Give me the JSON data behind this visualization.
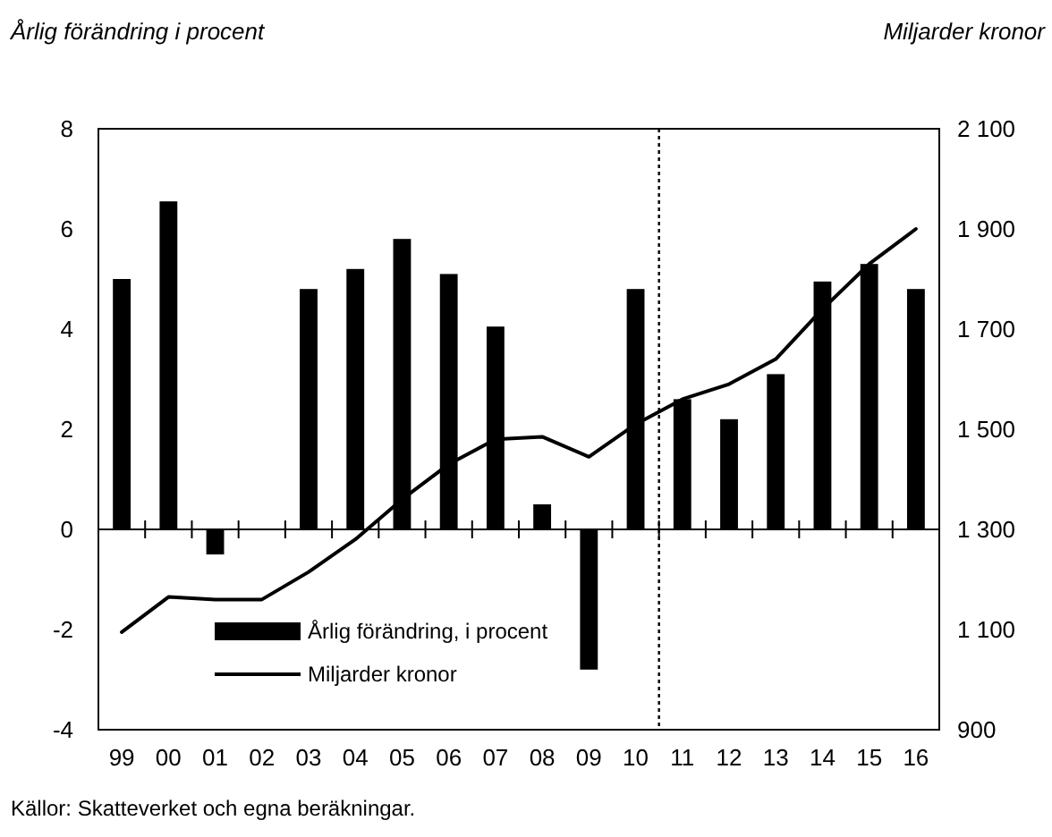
{
  "chart_data": {
    "type": "bar",
    "ylabel": "Årlig förändring i procent",
    "y2label": "Miljarder kronor",
    "x": [
      1999,
      2000,
      2001,
      2002,
      2003,
      2004,
      2005,
      2006,
      2007,
      2008,
      2009,
      2010,
      2011,
      2012,
      2013,
      2014,
      2015,
      2016
    ],
    "xlim": [
      1998.5,
      2016.5
    ],
    "xticks": [
      {
        "value": 1999,
        "label": "99"
      },
      {
        "value": 2000,
        "label": "00"
      },
      {
        "value": 2001,
        "label": "01"
      },
      {
        "value": 2002,
        "label": "02"
      },
      {
        "value": 2003,
        "label": "03"
      },
      {
        "value": 2004,
        "label": "04"
      },
      {
        "value": 2005,
        "label": "05"
      },
      {
        "value": 2006,
        "label": "06"
      },
      {
        "value": 2007,
        "label": "07"
      },
      {
        "value": 2008,
        "label": "08"
      },
      {
        "value": 2009,
        "label": "09"
      },
      {
        "value": 2010,
        "label": "10"
      },
      {
        "value": 2011,
        "label": "11"
      },
      {
        "value": 2012,
        "label": "12"
      },
      {
        "value": 2013,
        "label": "13"
      },
      {
        "value": 2014,
        "label": "14"
      },
      {
        "value": 2015,
        "label": "15"
      },
      {
        "value": 2016,
        "label": "16"
      },
      {
        "value": 1999.5,
        "label": null
      },
      {
        "value": 2000.5,
        "label": null
      },
      {
        "value": 2001.5,
        "label": null
      },
      {
        "value": 2002.5,
        "label": null
      },
      {
        "value": 2003.5,
        "label": null
      },
      {
        "value": 2004.5,
        "label": null
      },
      {
        "value": 2005.5,
        "label": null
      },
      {
        "value": 2006.5,
        "label": null
      },
      {
        "value": 2007.5,
        "label": null
      },
      {
        "value": 2008.5,
        "label": null
      },
      {
        "value": 2009.5,
        "label": null
      },
      {
        "value": 2010.5,
        "label": null
      },
      {
        "value": 2011.5,
        "label": null
      },
      {
        "value": 2012.5,
        "label": null
      },
      {
        "value": 2013.5,
        "label": null
      },
      {
        "value": 2014.5,
        "label": null
      },
      {
        "value": 2015.5,
        "label": null
      }
    ],
    "ylim": [
      -4,
      8
    ],
    "yticks": [
      -4,
      -2,
      0,
      2,
      4,
      6,
      8
    ],
    "y2lim": [
      900,
      2100
    ],
    "y2ticks": [
      900,
      {
        "value": 1100,
        "label": "1 100"
      },
      {
        "value": 1300,
        "label": "1 300"
      },
      {
        "value": 1500,
        "label": "1 500"
      },
      {
        "value": 1700,
        "label": "1 700"
      },
      {
        "value": 1900,
        "label": "1 900"
      },
      {
        "value": 2100,
        "label": "2 100"
      }
    ],
    "series": [
      {
        "name": "Årlig förändring, i procent",
        "color": "#000000",
        "values": [
          5.0,
          6.55,
          -0.5,
          0,
          4.8,
          5.2,
          5.8,
          5.1,
          4.05,
          0.5,
          -2.8,
          4.8,
          2.6,
          2.2,
          3.1,
          4.95,
          5.3,
          4.8
        ]
      },
      {
        "name": "Miljarder kronor",
        "type": "line",
        "axis": "y2",
        "color": "#000000",
        "values": [
          1095,
          1165,
          1160,
          1160,
          1215,
          1280,
          1360,
          1430,
          1480,
          1485,
          1445,
          1510,
          1560,
          1590,
          1640,
          1740,
          1830,
          1900
        ]
      }
    ],
    "ref_lines": [
      {
        "axis": "x",
        "value": 2010.5,
        "line_style": "dotted",
        "color": "#000000"
      }
    ],
    "legend": "bottom left",
    "grid": false,
    "marker": "none",
    "line_style": "solid",
    "annotations": [
      "Källor: Skatteverket och egna beräkningar."
    ]
  }
}
